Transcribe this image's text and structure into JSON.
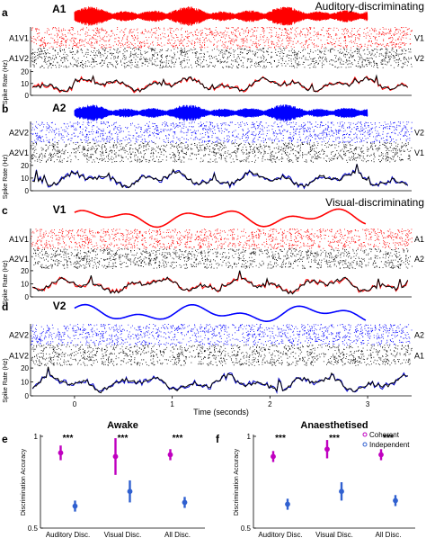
{
  "sections": {
    "auditory": "Auditory-discriminating",
    "visual": "Visual-discriminating"
  },
  "panels": [
    {
      "letter": "a",
      "stim_label": "A1",
      "stim_type": "audio",
      "stim_color": "#ff0000",
      "raster_left_top": "A1V1",
      "raster_left_bottom": "A1V2",
      "raster_right_top": "V1",
      "raster_right_bottom": "V2",
      "raster_top_color": "#ff0000",
      "raster_bottom_color": "#000000",
      "trace_color": "#ff0000"
    },
    {
      "letter": "b",
      "stim_label": "A2",
      "stim_type": "audio",
      "stim_color": "#0000ff",
      "raster_left_top": "A2V2",
      "raster_left_bottom": "A2V1",
      "raster_right_top": "V2",
      "raster_right_bottom": "V1",
      "raster_top_color": "#0000ff",
      "raster_bottom_color": "#000000",
      "trace_color": "#0000cc"
    },
    {
      "letter": "c",
      "stim_label": "V1",
      "stim_type": "visual",
      "stim_color": "#ff0000",
      "raster_left_top": "A1V1",
      "raster_left_bottom": "A2V1",
      "raster_right_top": "A1",
      "raster_right_bottom": "A2",
      "raster_top_color": "#ff0000",
      "raster_bottom_color": "#000000",
      "trace_color": "#ff0000"
    },
    {
      "letter": "d",
      "stim_label": "V2",
      "stim_type": "visual",
      "stim_color": "#0000ff",
      "raster_left_top": "A2V2",
      "raster_left_bottom": "A1V2",
      "raster_right_top": "A2",
      "raster_right_bottom": "A1",
      "raster_top_color": "#0000ff",
      "raster_bottom_color": "#000000",
      "trace_color": "#0000cc"
    }
  ],
  "rate_axis": {
    "label": "Spike Rate (Hz)",
    "ticks": [
      "0",
      "10",
      "20"
    ],
    "ylim": [
      0,
      22
    ]
  },
  "time_axis": {
    "label": "Time (seconds)",
    "ticks": [
      "0",
      "1",
      "2",
      "3"
    ],
    "xlim": [
      -0.45,
      3.45
    ]
  },
  "chart_data": [
    {
      "panel": "e",
      "type": "scatter",
      "title": "Awake",
      "ylabel": "Discrimination Accuracy",
      "ylim": [
        0.5,
        1.0
      ],
      "yticks": [
        "0.5",
        "1"
      ],
      "categories": [
        "Auditory Disc.",
        "Visual Disc.",
        "All Disc."
      ],
      "significance": [
        "***",
        "***",
        "***"
      ],
      "series": [
        {
          "name": "Coherent",
          "color": "#c000c0",
          "values": [
            0.91,
            0.89,
            0.9
          ],
          "err_low": [
            0.87,
            0.79,
            0.87
          ],
          "err_high": [
            0.95,
            0.99,
            0.93
          ]
        },
        {
          "name": "Independent",
          "color": "#3060d0",
          "values": [
            0.62,
            0.7,
            0.64
          ],
          "err_low": [
            0.59,
            0.64,
            0.61
          ],
          "err_high": [
            0.65,
            0.76,
            0.67
          ]
        }
      ]
    },
    {
      "panel": "f",
      "type": "scatter",
      "title": "Anaesthetised",
      "ylabel": "Discrimination Accuracy",
      "ylim": [
        0.5,
        1.0
      ],
      "yticks": [
        "0.5",
        "1"
      ],
      "categories": [
        "Auditory Disc.",
        "Visual Disc.",
        "All Disc."
      ],
      "significance": [
        "***",
        "***",
        "***"
      ],
      "legend": "top-right",
      "series": [
        {
          "name": "Coherent",
          "color": "#c000c0",
          "values": [
            0.89,
            0.93,
            0.9
          ],
          "err_low": [
            0.86,
            0.88,
            0.87
          ],
          "err_high": [
            0.92,
            0.98,
            0.93
          ]
        },
        {
          "name": "Independent",
          "color": "#3060d0",
          "values": [
            0.63,
            0.7,
            0.65
          ],
          "err_low": [
            0.6,
            0.65,
            0.62
          ],
          "err_high": [
            0.66,
            0.75,
            0.68
          ]
        }
      ]
    }
  ]
}
